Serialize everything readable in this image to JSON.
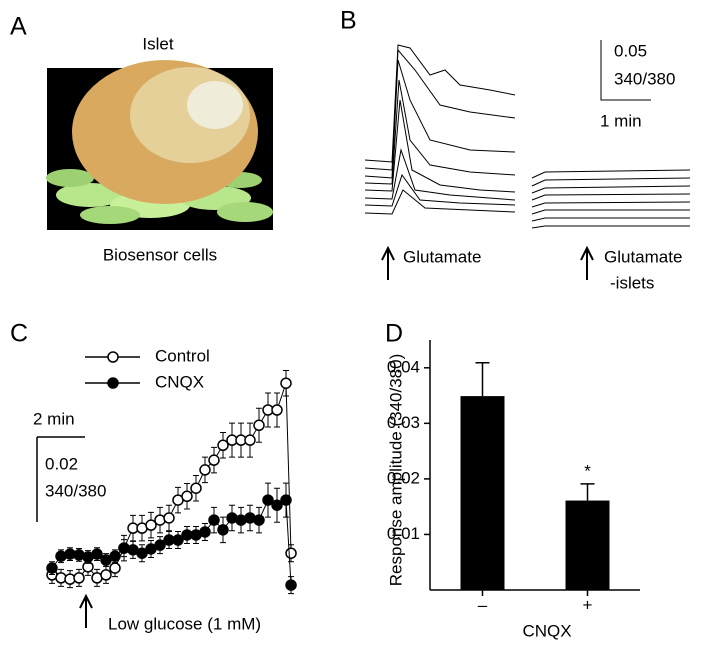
{
  "panel_labels": [
    "A",
    "B",
    "C",
    "D"
  ],
  "panel_a": {
    "top_label": "Islet",
    "bottom_label": "Biosensor cells"
  },
  "panel_b": {
    "scale_value": "0.05",
    "scale_unit": "340/380",
    "scale_time": "1 min",
    "label_1": "Glutamate",
    "label_2": "Glutamate",
    "label_2b": "-islets"
  },
  "chart_data": [
    {
      "type": "line",
      "annotation": "Low glucose (1 mM)",
      "scalebar_x": {
        "value": 2,
        "label": "2 min"
      },
      "scalebar_y": {
        "value": 0.02,
        "label": "0.02"
      },
      "scalebar_y_unit": "340/380",
      "x": [
        0,
        0.375,
        0.75,
        1.125,
        1.5,
        1.875,
        2.25,
        2.625,
        3,
        3.375,
        3.75,
        4.125,
        4.5,
        4.875,
        5.25,
        5.625,
        6,
        6.375,
        6.75,
        7.125,
        7.5,
        7.875,
        8.25,
        8.625,
        9,
        9.375,
        9.75,
        9.96
      ],
      "series": [
        {
          "name": "Control",
          "color": "#ffffff",
          "values": [
            0.0012,
            0.0005,
            0.0002,
            0.0005,
            0.0031,
            0.0005,
            0.0012,
            0.0028,
            0.0075,
            0.0122,
            0.0122,
            0.0129,
            0.0141,
            0.0146,
            0.0188,
            0.0197,
            0.0216,
            0.0259,
            0.0282,
            0.0317,
            0.0329,
            0.0329,
            0.0329,
            0.0364,
            0.04,
            0.04,
            0.0463,
            0.0063
          ],
          "errors": [
            0.002,
            0.002,
            0.002,
            0.002,
            0.002,
            0.002,
            0.002,
            0.002,
            0.003,
            0.003,
            0.003,
            0.003,
            0.003,
            0.003,
            0.003,
            0.003,
            0.003,
            0.003,
            0.003,
            0.003,
            0.004,
            0.004,
            0.004,
            0.004,
            0.004,
            0.004,
            0.003,
            0.002
          ]
        },
        {
          "name": "CNQX",
          "color": "#000000",
          "values": [
            0.0028,
            0.0056,
            0.0061,
            0.0059,
            0.0054,
            0.0061,
            0.0047,
            0.0056,
            0.0075,
            0.0071,
            0.0063,
            0.0073,
            0.0082,
            0.0094,
            0.0094,
            0.0106,
            0.0106,
            0.0113,
            0.0141,
            0.0118,
            0.0146,
            0.0141,
            0.0146,
            0.0141,
            0.0188,
            0.0176,
            0.0188,
            -0.0012
          ],
          "errors": [
            0.0015,
            0.0015,
            0.0015,
            0.0015,
            0.0015,
            0.0015,
            0.0015,
            0.0015,
            0.002,
            0.002,
            0.002,
            0.002,
            0.002,
            0.002,
            0.002,
            0.002,
            0.002,
            0.002,
            0.003,
            0.003,
            0.003,
            0.003,
            0.003,
            0.003,
            0.004,
            0.004,
            0.004,
            0.002
          ]
        }
      ]
    },
    {
      "type": "bar",
      "ylabel": "Response amplitude (340/380)",
      "xlabel": "CNQX",
      "categories": [
        "–",
        "+"
      ],
      "values": [
        0.0349,
        0.0161
      ],
      "errors": [
        0.006,
        0.003
      ],
      "color": "#000000",
      "annotation": "*",
      "ylim": [
        0,
        0.045
      ],
      "yticks": [
        0.01,
        0.02,
        0.03,
        0.04
      ]
    }
  ]
}
